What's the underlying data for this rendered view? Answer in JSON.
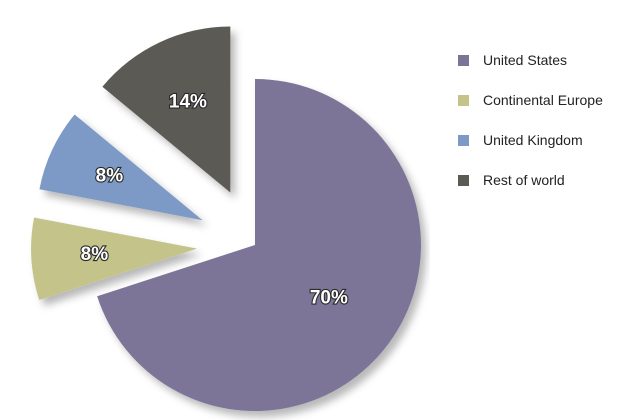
{
  "chart_data": {
    "type": "pie",
    "exploded": true,
    "labels": [
      "United States",
      "Continental Europe",
      "United Kingdom",
      "Rest of world"
    ],
    "values": [
      70,
      8,
      8,
      14
    ],
    "value_labels": [
      "70%",
      "8%",
      "8%",
      "14%"
    ],
    "colors": [
      "#7b7497",
      "#c4c48a",
      "#7d9ac6",
      "#5c5a55"
    ],
    "legend_position": "right"
  }
}
